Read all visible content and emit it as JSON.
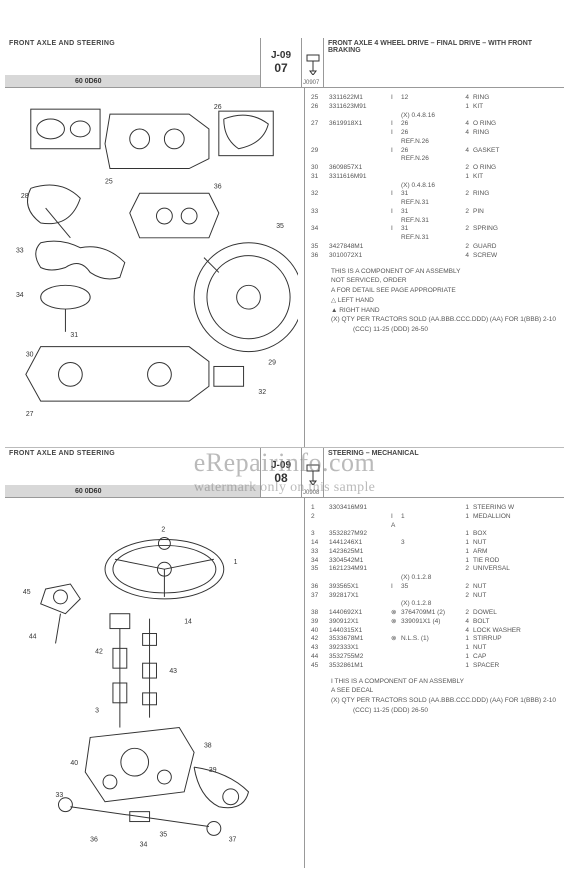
{
  "watermark": {
    "main": "eRepairinfo.com",
    "sub": "watermark only on this sample"
  },
  "sections": [
    {
      "left_title": "FRONT AXLE AND STEERING",
      "model": "60 0D60",
      "code_top": "J-09",
      "code_bot": "07",
      "icon_label": "J0907",
      "right_title": "FRONT AXLE 4 WHEEL DRIVE – FINAL DRIVE – WITH FRONT BRAKING",
      "rows": [
        {
          "ref": "25",
          "pn": "3311622M1",
          "sym": "I",
          "note": "12",
          "qty": "4",
          "desc": "RING"
        },
        {
          "ref": "26",
          "pn": "3311623M91",
          "sym": "",
          "note": "",
          "qty": "1",
          "desc": "KIT"
        },
        {
          "ref": "",
          "pn": "",
          "sym": "",
          "note": "(X) 0.4.8.16",
          "qty": "",
          "desc": ""
        },
        {
          "ref": "27",
          "pn": "3619918X1",
          "sym": "I",
          "note": "26",
          "qty": "4",
          "desc": "O RING"
        },
        {
          "ref": "",
          "pn": "",
          "sym": "I",
          "note": "26",
          "qty": "4",
          "desc": "RING"
        },
        {
          "ref": "",
          "pn": "",
          "sym": "",
          "note": "REF.N.26",
          "qty": "",
          "desc": ""
        },
        {
          "ref": "29",
          "pn": "",
          "sym": "I",
          "note": "26",
          "qty": "4",
          "desc": "GASKET"
        },
        {
          "ref": "",
          "pn": "",
          "sym": "",
          "note": "REF.N.26",
          "qty": "",
          "desc": ""
        },
        {
          "ref": "30",
          "pn": "3609857X1",
          "sym": "",
          "note": "",
          "qty": "2",
          "desc": "O RING"
        },
        {
          "ref": "31",
          "pn": "3311616M91",
          "sym": "",
          "note": "",
          "qty": "1",
          "desc": "KIT"
        },
        {
          "ref": "",
          "pn": "",
          "sym": "",
          "note": "(X) 0.4.8.16",
          "qty": "",
          "desc": ""
        },
        {
          "ref": "32",
          "pn": "",
          "sym": "I",
          "note": "31",
          "qty": "2",
          "desc": "RING"
        },
        {
          "ref": "",
          "pn": "",
          "sym": "",
          "note": "REF.N.31",
          "qty": "",
          "desc": ""
        },
        {
          "ref": "33",
          "pn": "",
          "sym": "I",
          "note": "31",
          "qty": "2",
          "desc": "PIN"
        },
        {
          "ref": "",
          "pn": "",
          "sym": "",
          "note": "REF.N.31",
          "qty": "",
          "desc": ""
        },
        {
          "ref": "34",
          "pn": "",
          "sym": "I",
          "note": "31",
          "qty": "2",
          "desc": "SPRING"
        },
        {
          "ref": "",
          "pn": "",
          "sym": "",
          "note": "REF.N.31",
          "qty": "",
          "desc": ""
        },
        {
          "ref": "35",
          "pn": "3427848M1",
          "sym": "",
          "note": "",
          "qty": "2",
          "desc": "GUARD"
        },
        {
          "ref": "36",
          "pn": "3010072X1",
          "sym": "",
          "note": "",
          "qty": "4",
          "desc": "SCREW"
        }
      ],
      "notes": [
        {
          "sym": "",
          "text": "THIS IS A COMPONENT OF AN ASSEMBLY"
        },
        {
          "sym": "",
          "text": "NOT SERVICED, ORDER"
        },
        {
          "sym": "A",
          "text": "FOR DETAIL SEE PAGE APPROPRIATE"
        },
        {
          "sym": "△",
          "text": "LEFT HAND"
        },
        {
          "sym": "▲",
          "text": "RIGHT HAND"
        },
        {
          "sym": "(X)",
          "text": "QTY PER TRACTORS SOLD  (AA.BBB.CCC.DDD) (AA) FOR 1(BBB) 2-10 (CCC) 11-25 (DDD) 26-50"
        }
      ]
    },
    {
      "left_title": "FRONT AXLE AND STEERING",
      "model": "60 0D60",
      "code_top": "J-09",
      "code_bot": "08",
      "icon_label": "J0908",
      "right_title": "STEERING – MECHANICAL",
      "rows": [
        {
          "ref": "1",
          "pn": "3303416M91",
          "sym": "",
          "note": "",
          "qty": "1",
          "desc": "STEERING W"
        },
        {
          "ref": "2",
          "pn": "",
          "sym": "I",
          "note": "1",
          "qty": "1",
          "desc": "MEDALLION"
        },
        {
          "ref": "",
          "pn": "",
          "sym": "A",
          "note": "",
          "qty": "",
          "desc": ""
        },
        {
          "ref": "3",
          "pn": "3532827M92",
          "sym": "",
          "note": "",
          "qty": "1",
          "desc": "BOX"
        },
        {
          "ref": "14",
          "pn": "1441246X1",
          "sym": "",
          "note": "3",
          "qty": "1",
          "desc": "NUT"
        },
        {
          "ref": "33",
          "pn": "1423625M1",
          "sym": "",
          "note": "",
          "qty": "1",
          "desc": "ARM"
        },
        {
          "ref": "34",
          "pn": "3304542M1",
          "sym": "",
          "note": "",
          "qty": "1",
          "desc": "TIE ROD"
        },
        {
          "ref": "35",
          "pn": "1621234M91",
          "sym": "",
          "note": "",
          "qty": "2",
          "desc": "UNIVERSAL"
        },
        {
          "ref": "",
          "pn": "",
          "sym": "",
          "note": "(X) 0.1.2.8",
          "qty": "",
          "desc": ""
        },
        {
          "ref": "36",
          "pn": "393565X1",
          "sym": "I",
          "note": "35",
          "qty": "2",
          "desc": "NUT"
        },
        {
          "ref": "37",
          "pn": "392817X1",
          "sym": "",
          "note": "",
          "qty": "2",
          "desc": "NUT"
        },
        {
          "ref": "",
          "pn": "",
          "sym": "",
          "note": "(X) 0.1.2.8",
          "qty": "",
          "desc": ""
        },
        {
          "ref": "38",
          "pn": "1440692X1",
          "sym": "⊗",
          "note": "3764709M1   (2)",
          "qty": "2",
          "desc": "DOWEL"
        },
        {
          "ref": "39",
          "pn": "390912X1",
          "sym": "⊗",
          "note": "339091X1    (4)",
          "qty": "4",
          "desc": "BOLT"
        },
        {
          "ref": "40",
          "pn": "1440315X1",
          "sym": "",
          "note": "",
          "qty": "4",
          "desc": "LOCK WASHER"
        },
        {
          "ref": "42",
          "pn": "3533678M1",
          "sym": "⊗",
          "note": "N.L.S.   (1)",
          "qty": "1",
          "desc": "STIRRUP"
        },
        {
          "ref": "43",
          "pn": "392333X1",
          "sym": "",
          "note": "",
          "qty": "1",
          "desc": "NUT"
        },
        {
          "ref": "44",
          "pn": "3532755M2",
          "sym": "",
          "note": "",
          "qty": "1",
          "desc": "CAP"
        },
        {
          "ref": "45",
          "pn": "3532861M1",
          "sym": "",
          "note": "",
          "qty": "1",
          "desc": "SPACER"
        }
      ],
      "notes": [
        {
          "sym": "I",
          "text": "THIS IS A COMPONENT OF AN ASSEMBLY"
        },
        {
          "sym": "A",
          "text": "SEE DECAL"
        },
        {
          "sym": "(X)",
          "text": "QTY PER TRACTORS SOLD  (AA.BBB.CCC.DDD) (AA) FOR 1(BBB) 2-10 (CCC) 11-25 (DDD) 26-50"
        }
      ]
    }
  ]
}
